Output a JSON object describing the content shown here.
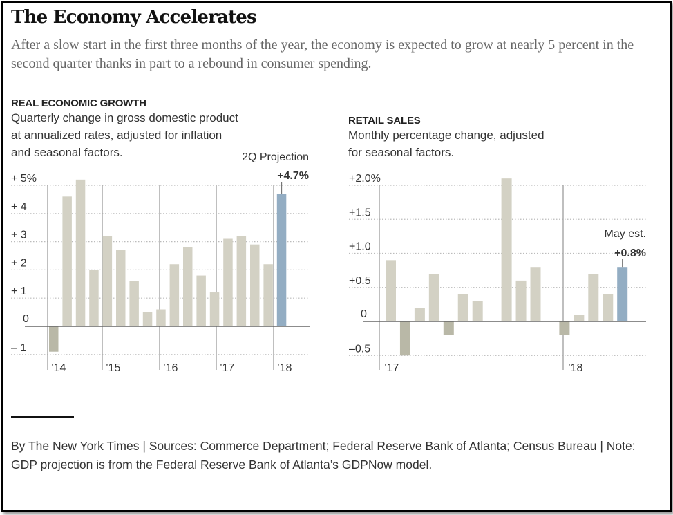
{
  "header": {
    "title": "The Economy Accelerates",
    "subtitle": "After a slow start in the first three months of the year, the economy is expected to grow at nearly 5 percent in the second quarter thanks in part to a rebound in consumer spending."
  },
  "colors": {
    "bar_positive": "#d3d1c4",
    "bar_negative": "#b9b8a7",
    "bar_highlight": "#93adc3",
    "axis": "#666666",
    "grid": "#bbbbbb",
    "year_line": "#aaaaaa"
  },
  "footer": {
    "credit": "By The New York Times | Sources: Commerce Department; Federal Reserve Bank of Atlanta; Census Bureau | Note: GDP projection is from the Federal Reserve Bank of Atlanta’s GDPNow model."
  },
  "chart_data": [
    {
      "type": "bar",
      "kicker": "REAL ECONOMIC GROWTH",
      "title": "Quarterly change in gross domestic product at annualized rates, adjusted for inflation and seasonal factors.",
      "xlabel": "",
      "ylabel": "",
      "ylim": [
        -1,
        5
      ],
      "yticks": [
        {
          "value": 5,
          "label": "+ 5%"
        },
        {
          "value": 4,
          "label": "+ 4"
        },
        {
          "value": 3,
          "label": "+ 3"
        },
        {
          "value": 2,
          "label": "+ 2"
        },
        {
          "value": 1,
          "label": "+ 1"
        },
        {
          "value": 0,
          "label": "0"
        },
        {
          "value": -1,
          "label": "– 1"
        }
      ],
      "grid": true,
      "year_labels": [
        "’14",
        "’15",
        "’16",
        "’17",
        "’18"
      ],
      "categories": [
        "2014 Q1",
        "2014 Q2",
        "2014 Q3",
        "2014 Q4",
        "2015 Q1",
        "2015 Q2",
        "2015 Q3",
        "2015 Q4",
        "2016 Q1",
        "2016 Q2",
        "2016 Q3",
        "2016 Q4",
        "2017 Q1",
        "2017 Q2",
        "2017 Q3",
        "2017 Q4",
        "2018 Q1",
        "2018 Q2"
      ],
      "values": [
        -0.9,
        4.6,
        5.2,
        2.0,
        3.2,
        2.7,
        1.6,
        0.5,
        0.6,
        2.2,
        2.8,
        1.8,
        1.2,
        3.1,
        3.2,
        2.9,
        2.2,
        4.7
      ],
      "highlight_index": 17,
      "annotation": {
        "label": "2Q Projection",
        "value_label": "+4.7%"
      }
    },
    {
      "type": "bar",
      "kicker": "RETAIL SALES",
      "title": "Monthly percentage change, adjusted for seasonal factors.",
      "xlabel": "",
      "ylabel": "",
      "ylim": [
        -0.5,
        2.0
      ],
      "yticks": [
        {
          "value": 2.0,
          "label": "+2.0%"
        },
        {
          "value": 1.5,
          "label": "+1.5"
        },
        {
          "value": 1.0,
          "label": "+1.0"
        },
        {
          "value": 0.5,
          "label": "+0.5"
        },
        {
          "value": 0,
          "label": "0"
        },
        {
          "value": -0.5,
          "label": "–0.5"
        }
      ],
      "grid": true,
      "year_labels": [
        "’17",
        "’18"
      ],
      "categories": [
        "2017 Jan",
        "2017 Feb",
        "2017 Mar",
        "2017 Apr",
        "2017 May",
        "2017 Jun",
        "2017 Jul",
        "2017 Aug",
        "2017 Sep",
        "2017 Oct",
        "2017 Nov",
        "2017 Dec",
        "2018 Jan",
        "2018 Feb",
        "2018 Mar",
        "2018 Apr",
        "2018 May"
      ],
      "values": [
        0.9,
        -0.5,
        0.2,
        0.7,
        -0.2,
        0.4,
        0.3,
        0.0,
        2.1,
        0.6,
        0.8,
        0.0,
        -0.2,
        0.1,
        0.7,
        0.4,
        0.8
      ],
      "highlight_index": 16,
      "annotation": {
        "label": "May est.",
        "value_label": "+0.8%"
      }
    }
  ]
}
